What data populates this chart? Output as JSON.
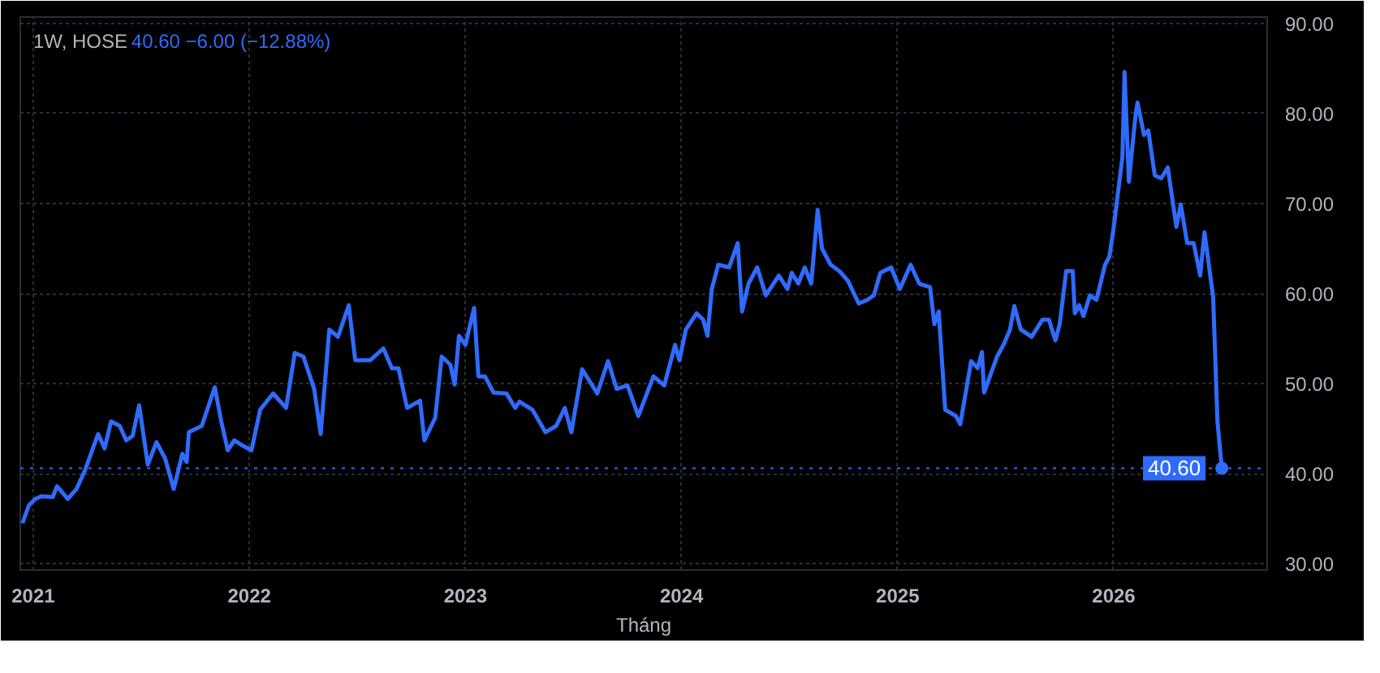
{
  "chart_data": {
    "type": "line",
    "title": "1W, HOSE",
    "subtitle": "40.60 −6.00 (−12.88%)",
    "xlabel": "Tháng",
    "xlim": [
      2020.94,
      2026.71
    ],
    "xticks": [
      2021,
      2022,
      2023,
      2024,
      2025,
      2026
    ],
    "ylim": [
      29.3,
      90.7
    ],
    "yticks": [
      {
        "value": 30,
        "label": "30.00"
      },
      {
        "value": 40,
        "label": "40.00"
      },
      {
        "value": 50,
        "label": "50.00"
      },
      {
        "value": 60,
        "label": "60.00"
      },
      {
        "value": 70,
        "label": "70.00"
      },
      {
        "value": 80,
        "label": "80.00"
      },
      {
        "value": 90,
        "label": "90.00"
      }
    ],
    "grid": true,
    "marker": "none",
    "line_style": "solid",
    "ref_lines": [
      {
        "axis": "y",
        "value": 40.6,
        "color": "#2f6bff",
        "line_style": "dotted"
      }
    ],
    "annotations": [
      {
        "text": "40.60",
        "x": 2026.5,
        "y": 40.6
      }
    ],
    "series": [
      {
        "color": "#2f6bff",
        "x": [
          2020.95,
          2020.98,
          2021.01,
          2021.04,
          2021.09,
          2021.11,
          2021.16,
          2021.2,
          2021.24,
          2021.3,
          2021.33,
          2021.36,
          2021.4,
          2021.43,
          2021.46,
          2021.49,
          2021.53,
          2021.57,
          2021.61,
          2021.65,
          2021.69,
          2021.71,
          2021.72,
          2021.78,
          2021.84,
          2021.87,
          2021.9,
          2021.93,
          2021.97,
          2022.01,
          2022.05,
          2022.11,
          2022.17,
          2022.21,
          2022.25,
          2022.3,
          2022.33,
          2022.37,
          2022.41,
          2022.46,
          2022.49,
          2022.56,
          2022.62,
          2022.66,
          2022.69,
          2022.73,
          2022.79,
          2022.81,
          2022.86,
          2022.89,
          2022.93,
          2022.95,
          2022.97,
          2023.0,
          2023.04,
          2023.06,
          2023.09,
          2023.13,
          2023.19,
          2023.23,
          2023.25,
          2023.31,
          2023.37,
          2023.42,
          2023.46,
          2023.49,
          2023.54,
          2023.61,
          2023.66,
          2023.7,
          2023.75,
          2023.8,
          2023.87,
          2023.92,
          2023.97,
          2023.99,
          2024.02,
          2024.07,
          2024.1,
          2024.12,
          2024.14,
          2024.17,
          2024.22,
          2024.26,
          2024.28,
          2024.31,
          2024.35,
          2024.39,
          2024.45,
          2024.49,
          2024.51,
          2024.54,
          2024.57,
          2024.6,
          2024.63,
          2024.65,
          2024.69,
          2024.73,
          2024.77,
          2024.82,
          2024.86,
          2024.89,
          2024.92,
          2024.97,
          2025.01,
          2025.06,
          2025.1,
          2025.15,
          2025.17,
          2025.19,
          2025.22,
          2025.27,
          2025.29,
          2025.34,
          2025.37,
          2025.39,
          2025.4,
          2025.46,
          2025.49,
          2025.52,
          2025.54,
          2025.57,
          2025.62,
          2025.67,
          2025.7,
          2025.73,
          2025.75,
          2025.78,
          2025.81,
          2025.82,
          2025.84,
          2025.86,
          2025.89,
          2025.92,
          2025.96,
          2025.98,
          2026.0,
          2026.04,
          2026.05,
          2026.07,
          2026.1,
          2026.11,
          2026.14,
          2026.16,
          2026.19,
          2026.22,
          2026.25,
          2026.29,
          2026.31,
          2026.34,
          2026.37,
          2026.4,
          2026.42,
          2026.46,
          2026.48,
          2026.5
        ],
        "values": [
          34.5,
          36.5,
          37.2,
          37.5,
          37.4,
          38.6,
          37.2,
          38.3,
          40.4,
          44.4,
          42.8,
          45.8,
          45.3,
          43.7,
          44.2,
          47.6,
          41.0,
          43.5,
          41.7,
          38.3,
          42.2,
          41.3,
          44.6,
          45.3,
          49.6,
          45.8,
          42.6,
          43.7,
          43.1,
          42.6,
          47.1,
          48.9,
          47.3,
          53.4,
          53.0,
          49.4,
          44.4,
          56.0,
          55.2,
          58.7,
          52.6,
          52.6,
          53.9,
          51.7,
          51.7,
          47.3,
          48.1,
          43.7,
          46.2,
          53.0,
          52.1,
          49.9,
          55.3,
          54.3,
          58.4,
          50.8,
          50.8,
          49.0,
          48.9,
          47.3,
          48.0,
          47.1,
          44.6,
          45.3,
          47.3,
          44.6,
          51.6,
          48.9,
          52.5,
          49.4,
          49.8,
          46.4,
          50.8,
          49.8,
          54.3,
          52.6,
          56.0,
          57.8,
          57.1,
          55.3,
          60.5,
          63.2,
          62.9,
          65.6,
          58.0,
          61.1,
          62.9,
          59.8,
          62.0,
          60.5,
          62.3,
          61.1,
          62.9,
          61.1,
          69.3,
          65.0,
          63.2,
          62.5,
          61.4,
          58.9,
          59.3,
          59.8,
          62.3,
          62.9,
          60.5,
          63.2,
          61.1,
          60.7,
          56.6,
          58.0,
          47.1,
          46.4,
          45.5,
          52.5,
          51.7,
          53.5,
          49.0,
          53.0,
          54.3,
          56.0,
          58.6,
          56.0,
          55.2,
          57.1,
          57.1,
          54.8,
          56.6,
          62.5,
          62.5,
          57.8,
          58.7,
          57.5,
          59.8,
          59.3,
          63.2,
          64.1,
          67.4,
          75.1,
          84.6,
          72.4,
          79.6,
          81.2,
          77.6,
          78.1,
          73.1,
          72.8,
          74.0,
          67.4,
          69.9,
          65.6,
          65.6,
          62.0,
          66.8,
          59.6,
          45.8,
          40.6
        ]
      }
    ]
  }
}
